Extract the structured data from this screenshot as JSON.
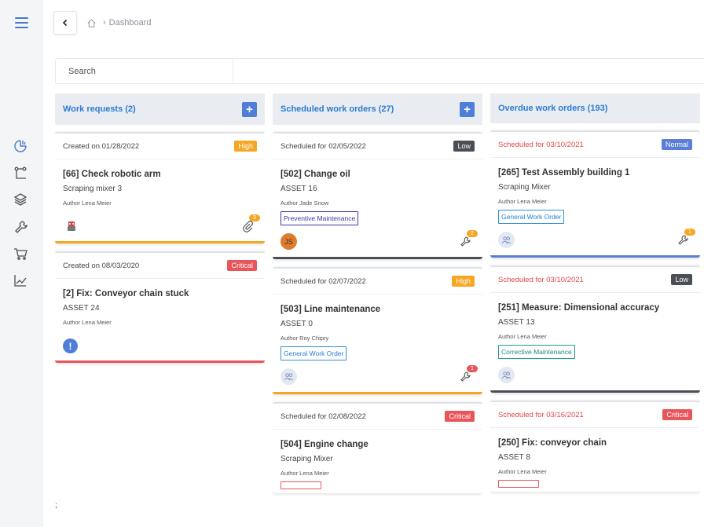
{
  "breadcrumb": {
    "current": "Dashboard"
  },
  "search": {
    "placeholder": "Search"
  },
  "colors": {
    "accent": "#4f7ed8",
    "high": "#f5a623",
    "critical": "#e8555a",
    "low": "#4a4e55",
    "normal": "#5b7fd6"
  },
  "columns": [
    {
      "title": "Work requests (2)",
      "has_add": true,
      "cards": [
        {
          "date": "Created on 01/28/2022",
          "priority": "High",
          "title": "[66] Check robotic arm",
          "asset": "Scraping mixer 3",
          "author": "Author Lena Meier",
          "tag": "",
          "count": "3"
        },
        {
          "date": "Created on 08/03/2020",
          "priority": "Critical",
          "title": "[2] Fix: Conveyor chain stuck",
          "asset": "ASSET 24",
          "author": "Author Lena Meier",
          "tag": "",
          "count": ""
        }
      ]
    },
    {
      "title": "Scheduled work orders (27)",
      "has_add": true,
      "cards": [
        {
          "date": "Scheduled for 02/05/2022",
          "priority": "Low",
          "title": "[502] Change oil",
          "asset": "ASSET 16",
          "author": "Author Jade Snow",
          "tag": "Preventive Maintenance",
          "avatar": "JS",
          "count": "2"
        },
        {
          "date": "Scheduled for 02/07/2022",
          "priority": "High",
          "title": "[503] Line maintenance",
          "asset": "ASSET 0",
          "author": "Author Roy Chipry",
          "tag": "General Work Order",
          "count": "1"
        },
        {
          "date": "Scheduled for 02/08/2022",
          "priority": "Critical",
          "title": "[504] Engine change",
          "asset": "Scraping Mixer",
          "author": "Author Lena Meier",
          "tag": ""
        }
      ]
    },
    {
      "title": "Overdue work orders (193)",
      "has_add": false,
      "cards": [
        {
          "date": "Scheduled for 03/10/2021",
          "priority": "Normal",
          "title": "[265] Test Assembly building 1",
          "asset": "Scraping Mixer",
          "author": "Author Lena Meier",
          "tag": "General Work Order",
          "count": "1"
        },
        {
          "date": "Scheduled for 03/10/2021",
          "priority": "Low",
          "title": "[251] Measure: Dimensional accuracy",
          "asset": "ASSET 13",
          "author": "Author Lena Meier",
          "tag": "Corrective Maintenance"
        },
        {
          "date": "Scheduled for 03/16/2021",
          "priority": "Critical",
          "title": "[250] Fix: conveyor chain",
          "asset": "ASSET 8",
          "author": "Author Lena Meier",
          "tag": ""
        }
      ]
    }
  ],
  "footnote": ";"
}
